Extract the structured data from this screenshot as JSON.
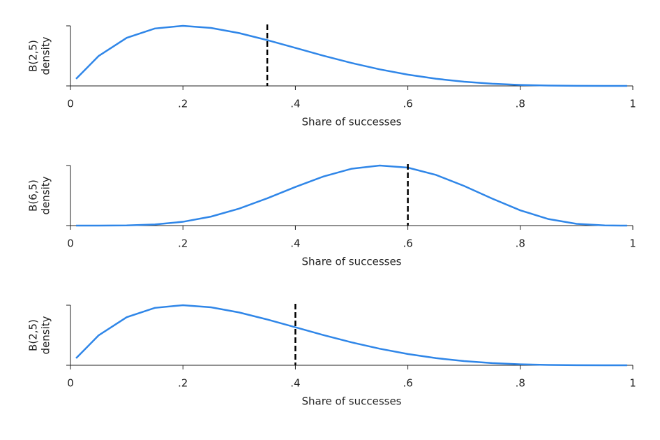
{
  "chart_data": [
    {
      "type": "line",
      "x_label": "Share of successes",
      "y_label": [
        "B(2,5)",
        "density"
      ],
      "x": [
        0.01,
        0.05,
        0.1,
        0.15,
        0.2,
        0.25,
        0.3,
        0.35,
        0.4,
        0.45,
        0.5,
        0.55,
        0.6,
        0.65,
        0.7,
        0.75,
        0.8,
        0.85,
        0.9,
        0.95,
        0.99
      ],
      "series": [
        {
          "color": "#2f86e8",
          "values": [
            0.288,
            1.222,
            1.968,
            2.349,
            2.458,
            2.373,
            2.161,
            1.874,
            1.555,
            1.235,
            0.9375,
            0.677,
            0.461,
            0.293,
            0.17,
            0.088,
            0.038,
            0.013,
            0.0027,
            0.0002,
            0
          ]
        }
      ],
      "marker_x": 0.35,
      "xlim": [
        0,
        1
      ],
      "ylim": [
        0,
        2.458
      ],
      "xticks": [
        0,
        {
          "value": 0.2,
          "label": ".2"
        },
        {
          "value": 0.4,
          "label": ".4"
        },
        {
          "value": 0.6,
          "label": ".6"
        },
        {
          "value": 0.8,
          "label": ".8"
        },
        1
      ]
    },
    {
      "type": "line",
      "x_label": "Share of successes",
      "y_label": [
        "B(6,5)",
        "density"
      ],
      "x": [
        0.01,
        0.05,
        0.1,
        0.15,
        0.2,
        0.25,
        0.3,
        0.35,
        0.4,
        0.45,
        0.5,
        0.55,
        0.6,
        0.65,
        0.7,
        0.75,
        0.8,
        0.85,
        0.9,
        0.95,
        0.99
      ],
      "series": [
        {
          "color": "#2f86e8",
          "values": [
            0,
            0.0003,
            0.0083,
            0.0499,
            0.165,
            0.389,
            0.735,
            1.181,
            1.672,
            2.127,
            2.461,
            2.6,
            2.508,
            2.193,
            1.716,
            1.167,
            0.661,
            0.283,
            0.0744,
            0.0061,
            0
          ]
        }
      ],
      "marker_x": 0.6,
      "xlim": [
        0,
        1
      ],
      "ylim": [
        0,
        2.6
      ],
      "xticks": [
        0,
        {
          "value": 0.2,
          "label": ".2"
        },
        {
          "value": 0.4,
          "label": ".4"
        },
        {
          "value": 0.6,
          "label": ".6"
        },
        {
          "value": 0.8,
          "label": ".8"
        },
        1
      ]
    },
    {
      "type": "line",
      "x_label": "Share of successes",
      "y_label": [
        "B(2,5)",
        "density"
      ],
      "x": [
        0.01,
        0.05,
        0.1,
        0.15,
        0.2,
        0.25,
        0.3,
        0.35,
        0.4,
        0.45,
        0.5,
        0.55,
        0.6,
        0.65,
        0.7,
        0.75,
        0.8,
        0.85,
        0.9,
        0.95,
        0.99
      ],
      "series": [
        {
          "color": "#2f86e8",
          "values": [
            0.288,
            1.222,
            1.968,
            2.349,
            2.458,
            2.373,
            2.161,
            1.874,
            1.555,
            1.235,
            0.9375,
            0.677,
            0.461,
            0.293,
            0.17,
            0.088,
            0.038,
            0.013,
            0.0027,
            0.0002,
            0
          ]
        }
      ],
      "marker_x": 0.4,
      "xlim": [
        0,
        1
      ],
      "ylim": [
        0,
        2.458
      ],
      "xticks": [
        0,
        {
          "value": 0.2,
          "label": ".2"
        },
        {
          "value": 0.4,
          "label": ".4"
        },
        {
          "value": 0.6,
          "label": ".6"
        },
        {
          "value": 0.8,
          "label": ".8"
        },
        1
      ]
    }
  ]
}
